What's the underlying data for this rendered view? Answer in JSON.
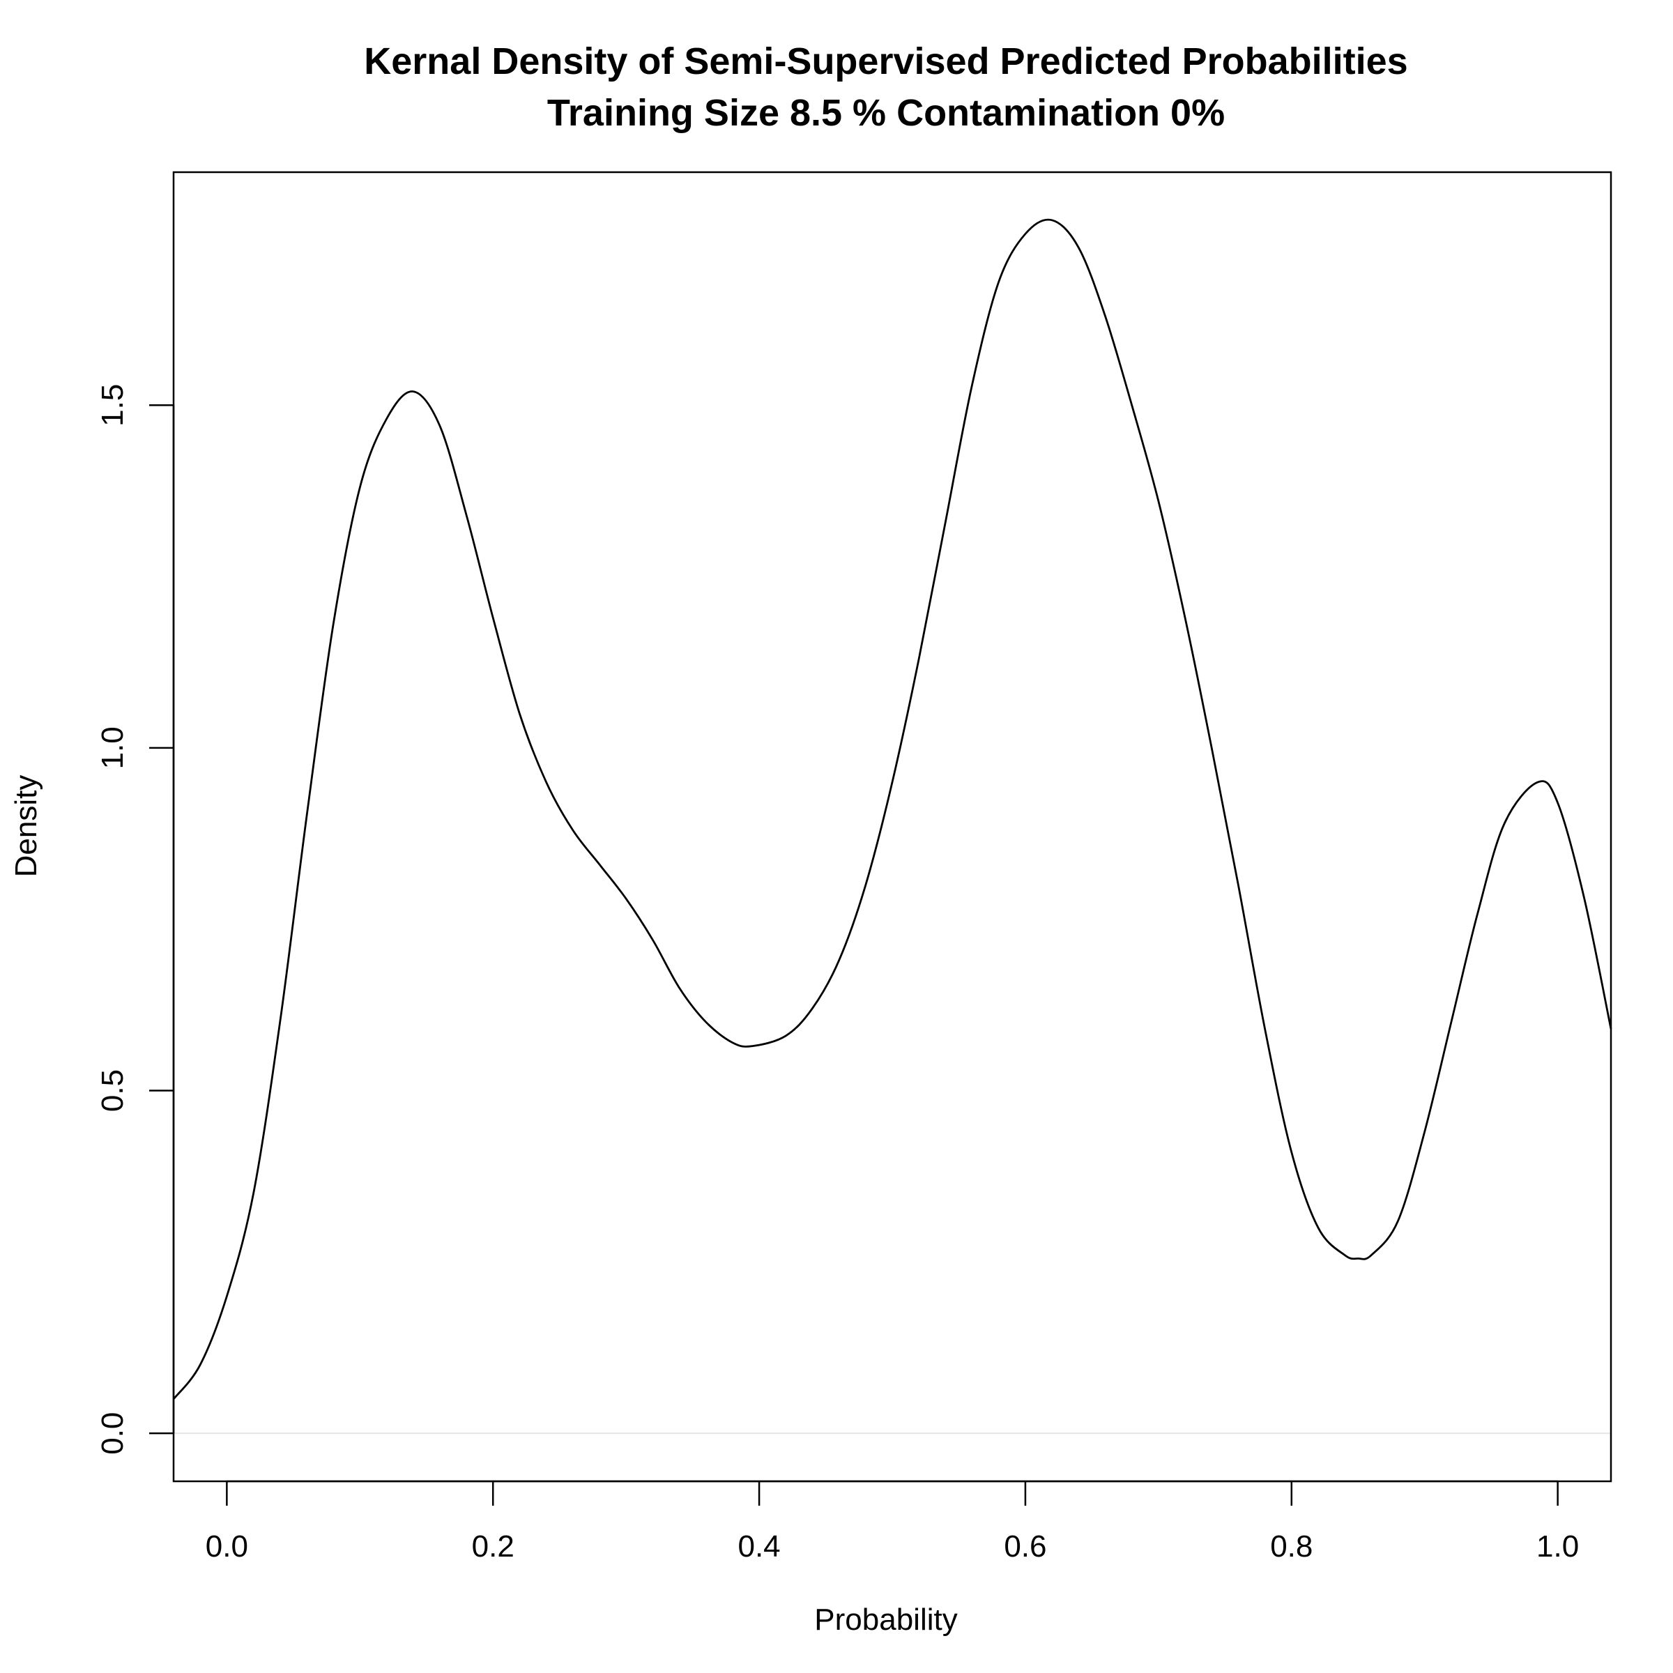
{
  "chart_data": {
    "type": "line",
    "title": "Kernal Density of Semi-Supervised Predicted Probabilities",
    "subtitle": "Training Size 8.5 % Contamination 0%",
    "xlabel": "Probability",
    "ylabel": "Density",
    "xlim": [
      -0.04,
      1.04
    ],
    "ylim": [
      -0.07,
      1.84
    ],
    "x_ticks": [
      0.0,
      0.2,
      0.4,
      0.6,
      0.8,
      1.0
    ],
    "x_tick_labels": [
      "0.0",
      "0.2",
      "0.4",
      "0.6",
      "0.8",
      "1.0"
    ],
    "y_ticks": [
      0.0,
      0.5,
      1.0,
      1.5
    ],
    "y_tick_labels": [
      "0.0",
      "0.5",
      "1.0",
      "1.5"
    ],
    "grid": false,
    "legend": "none",
    "series": [
      {
        "x": [
          -0.04,
          -0.02,
          0.0,
          0.02,
          0.04,
          0.06,
          0.08,
          0.1,
          0.12,
          0.14,
          0.16,
          0.18,
          0.2,
          0.22,
          0.24,
          0.26,
          0.28,
          0.3,
          0.32,
          0.34,
          0.36,
          0.38,
          0.395,
          0.42,
          0.44,
          0.46,
          0.48,
          0.5,
          0.52,
          0.54,
          0.56,
          0.58,
          0.6,
          0.62,
          0.64,
          0.66,
          0.68,
          0.7,
          0.72,
          0.74,
          0.76,
          0.78,
          0.8,
          0.82,
          0.84,
          0.85,
          0.86,
          0.88,
          0.9,
          0.92,
          0.94,
          0.96,
          0.985,
          1.0,
          1.02,
          1.04
        ],
        "y": [
          0.05,
          0.1,
          0.2,
          0.35,
          0.6,
          0.9,
          1.18,
          1.38,
          1.48,
          1.52,
          1.47,
          1.34,
          1.19,
          1.05,
          0.95,
          0.88,
          0.83,
          0.78,
          0.72,
          0.65,
          0.6,
          0.57,
          0.565,
          0.58,
          0.62,
          0.69,
          0.8,
          0.95,
          1.13,
          1.33,
          1.53,
          1.68,
          1.75,
          1.77,
          1.73,
          1.63,
          1.5,
          1.36,
          1.19,
          1.0,
          0.8,
          0.59,
          0.41,
          0.3,
          0.26,
          0.255,
          0.26,
          0.31,
          0.44,
          0.6,
          0.76,
          0.89,
          0.95,
          0.92,
          0.78,
          0.59
        ]
      }
    ]
  }
}
